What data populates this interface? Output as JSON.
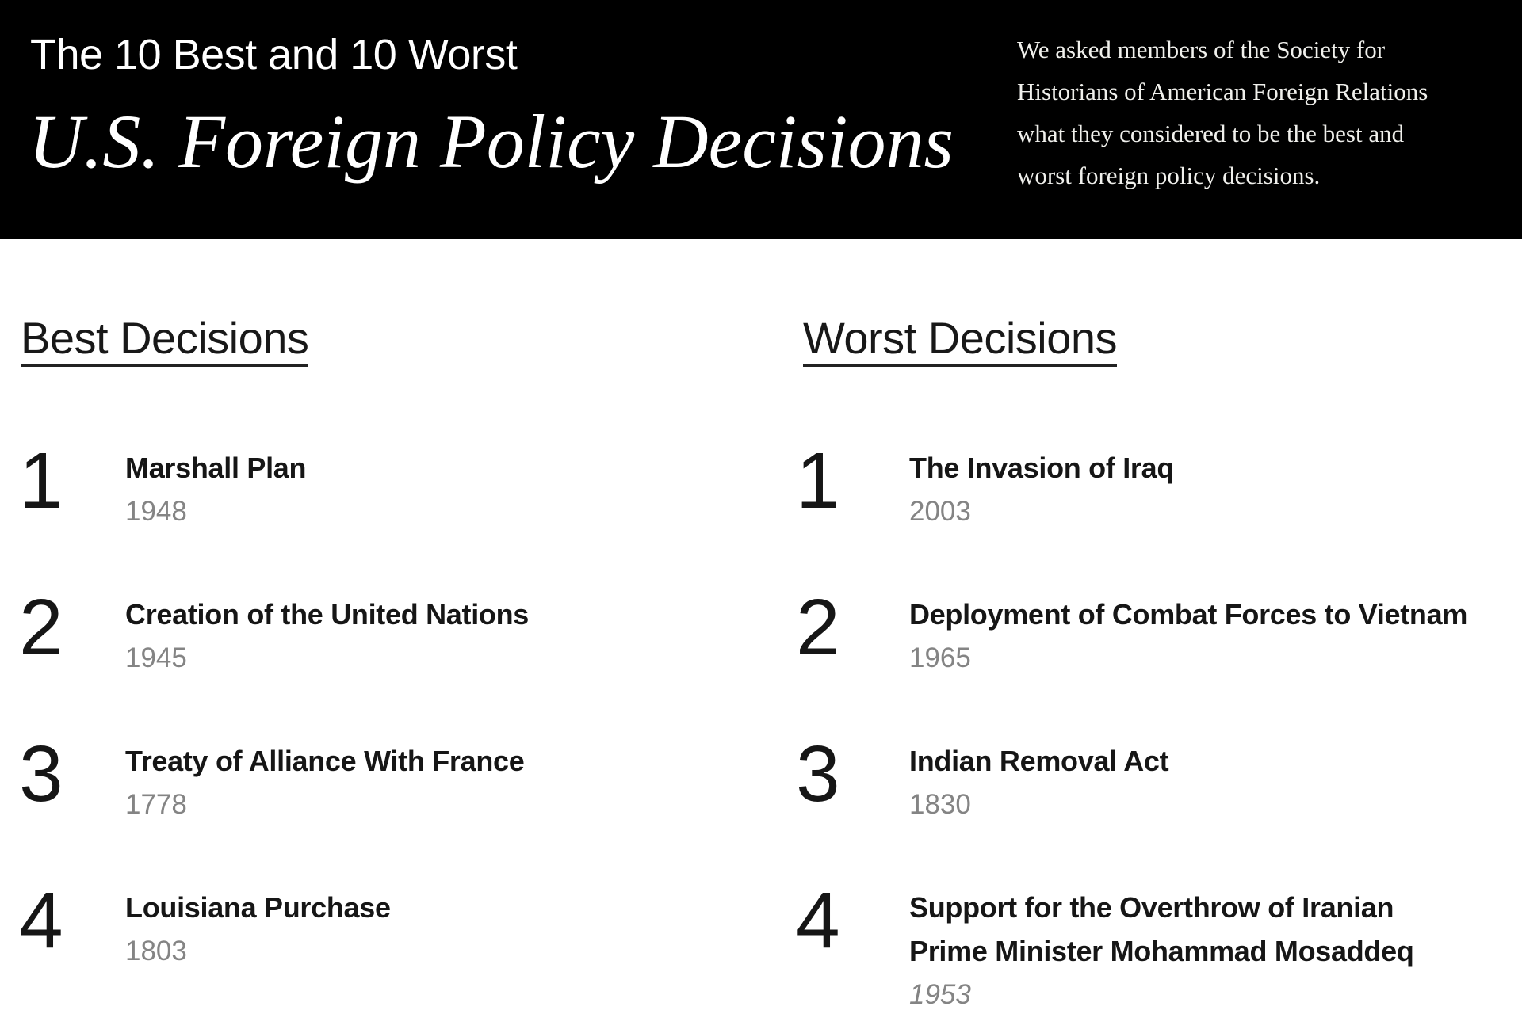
{
  "header": {
    "kicker": "The 10 Best and 10 Worst",
    "title": "U.S. Foreign Policy Decisions",
    "intro_lines": [
      "We asked members of the Society for",
      "Historians of American Foreign Relations",
      "what they considered to be the best and",
      "worst foreign policy decisions."
    ]
  },
  "best": {
    "heading": "Best Decisions",
    "items": [
      {
        "rank": "1",
        "title": "Marshall Plan",
        "year": "1948"
      },
      {
        "rank": "2",
        "title": "Creation of the United Nations",
        "year": "1945"
      },
      {
        "rank": "3",
        "title": "Treaty of Alliance With France",
        "year": "1778"
      },
      {
        "rank": "4",
        "title": "Louisiana Purchase",
        "year": "1803"
      }
    ]
  },
  "worst": {
    "heading": "Worst Decisions",
    "items": [
      {
        "rank": "1",
        "title": "The Invasion of Iraq",
        "year": "2003"
      },
      {
        "rank": "2",
        "title": "Deployment of Combat Forces to Vietnam",
        "year": "1965"
      },
      {
        "rank": "3",
        "title": "Indian Removal Act",
        "year": "1830"
      },
      {
        "rank": "4",
        "title": "Support for the Overthrow of Iranian Prime Minister Mohammad Mosaddeq",
        "year": "1953"
      }
    ]
  },
  "colors": {
    "header_bg": "#000000",
    "header_text": "#ffffff",
    "body_text": "#161616",
    "year_text": "#848484"
  }
}
